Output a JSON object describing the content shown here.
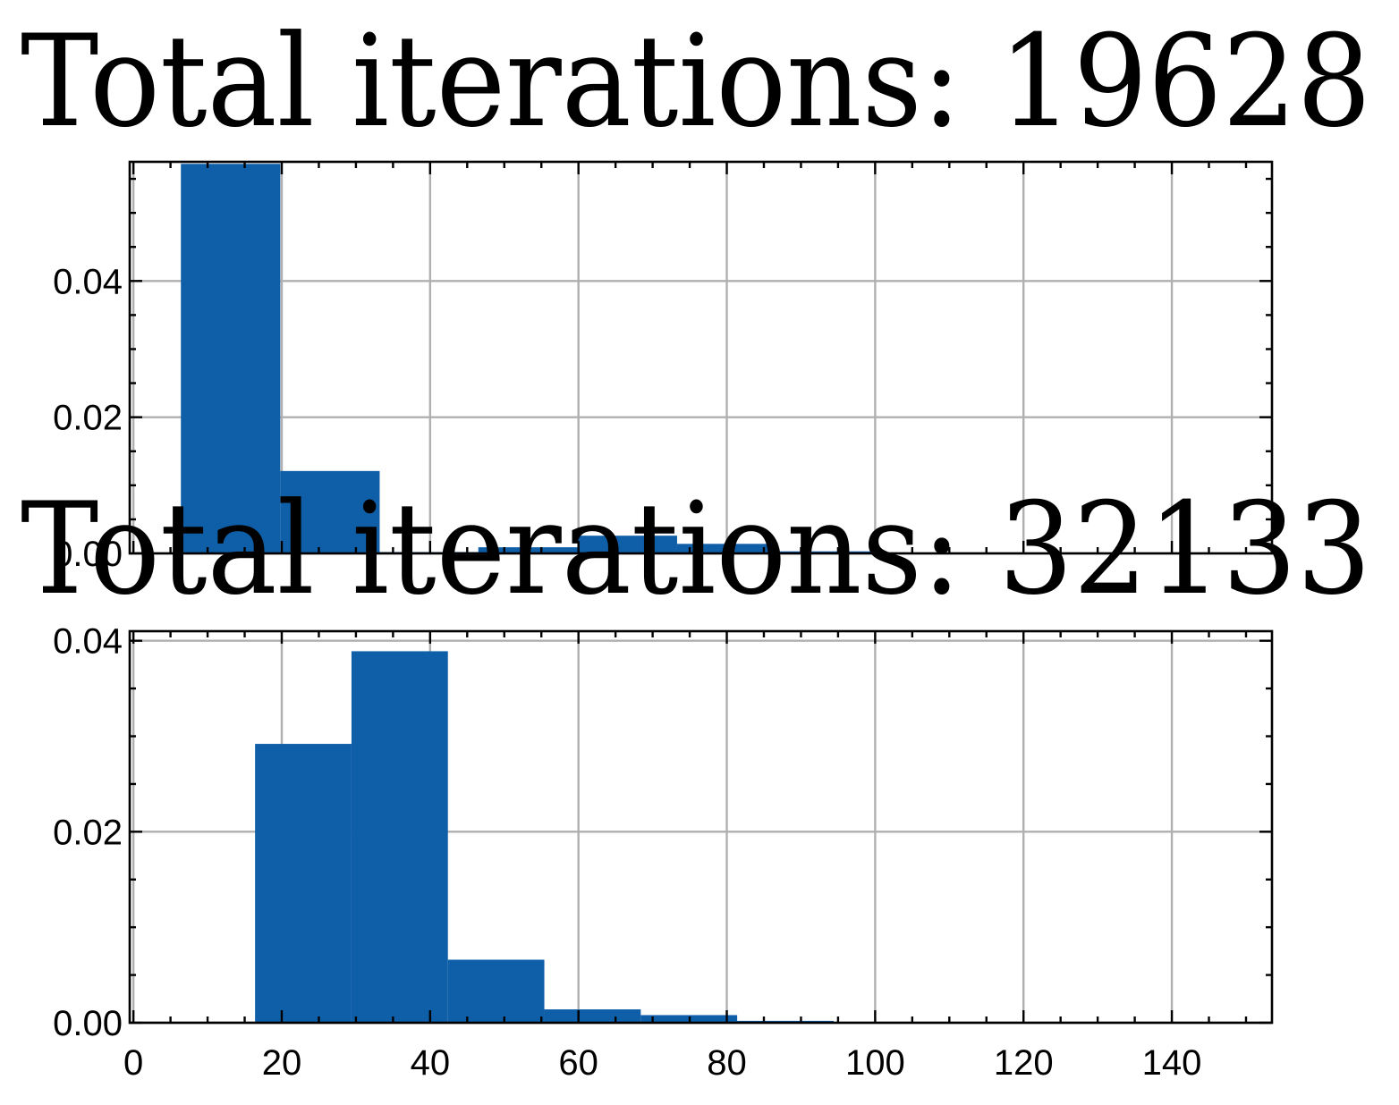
{
  "chart_data": [
    {
      "type": "bar",
      "title": "Total iterations: 19628",
      "xlabel": "",
      "ylabel": "",
      "xlim": [
        -0.5,
        153.5
      ],
      "ylim": [
        0,
        0.0575
      ],
      "grid": true,
      "show_x_tick_labels": false,
      "x_ticks": [
        0,
        20,
        40,
        60,
        80,
        100,
        120,
        140
      ],
      "x_tick_labels": [
        "0",
        "20",
        "40",
        "60",
        "80",
        "100",
        "120",
        "140"
      ],
      "y_ticks": [
        0.0,
        0.02,
        0.04
      ],
      "y_tick_labels": [
        "0.00",
        "0.02",
        "0.04"
      ],
      "color": "#0f5ea8",
      "bins": [
        {
          "x0": 6.4,
          "x1": 19.8,
          "value": 0.0572
        },
        {
          "x0": 19.8,
          "x1": 33.2,
          "value": 0.0121
        },
        {
          "x0": 33.2,
          "x1": 46.5,
          "value": 0.0002
        },
        {
          "x0": 46.5,
          "x1": 59.9,
          "value": 0.0009
        },
        {
          "x0": 59.9,
          "x1": 73.3,
          "value": 0.0026
        },
        {
          "x0": 73.3,
          "x1": 86.7,
          "value": 0.0014
        },
        {
          "x0": 86.7,
          "x1": 100.1,
          "value": 0.0003
        },
        {
          "x0": 100.1,
          "x1": 113.5,
          "value": 0.0001
        }
      ]
    },
    {
      "type": "bar",
      "title": "Total iterations: 32133",
      "xlabel": "",
      "ylabel": "",
      "xlim": [
        -0.5,
        153.5
      ],
      "ylim": [
        0,
        0.041
      ],
      "grid": true,
      "show_x_tick_labels": true,
      "x_ticks": [
        0,
        20,
        40,
        60,
        80,
        100,
        120,
        140
      ],
      "x_tick_labels": [
        "0",
        "20",
        "40",
        "60",
        "80",
        "100",
        "120",
        "140"
      ],
      "y_ticks": [
        0.0,
        0.02,
        0.04
      ],
      "y_tick_labels": [
        "0.00",
        "0.02",
        "0.04"
      ],
      "color": "#0f5ea8",
      "bins": [
        {
          "x0": 16.4,
          "x1": 29.4,
          "value": 0.0292
        },
        {
          "x0": 29.4,
          "x1": 42.4,
          "value": 0.0389
        },
        {
          "x0": 42.4,
          "x1": 55.4,
          "value": 0.0066
        },
        {
          "x0": 55.4,
          "x1": 68.4,
          "value": 0.0014
        },
        {
          "x0": 68.4,
          "x1": 81.4,
          "value": 0.0008
        },
        {
          "x0": 81.4,
          "x1": 94.4,
          "value": 0.0002
        },
        {
          "x0": 94.4,
          "x1": 107.4,
          "value": 5e-05
        }
      ]
    }
  ]
}
